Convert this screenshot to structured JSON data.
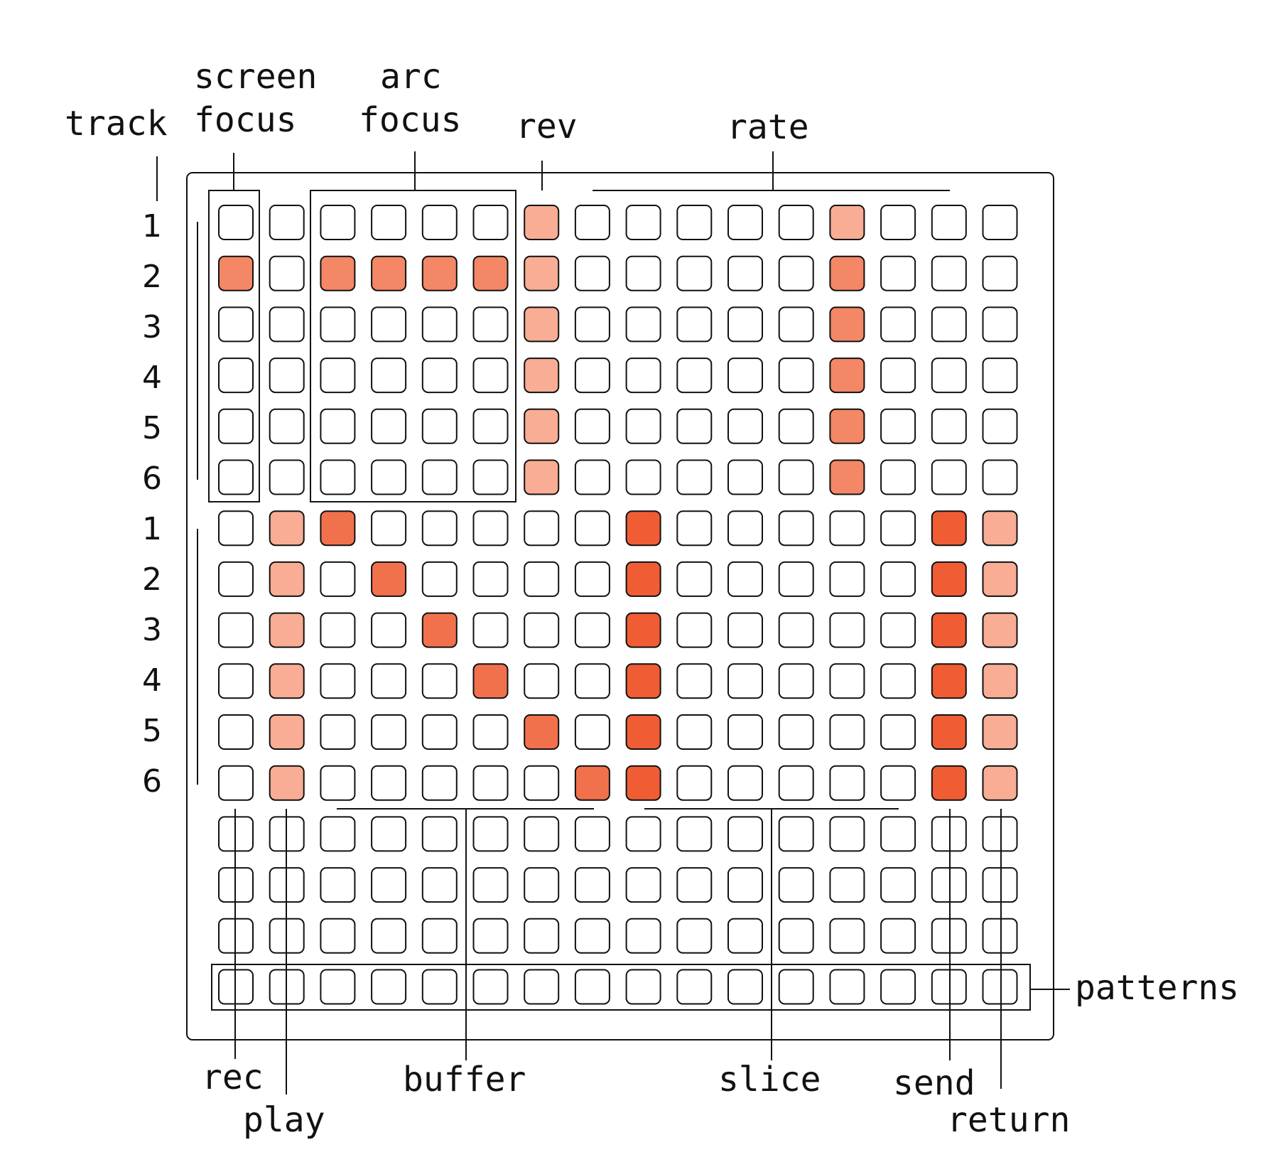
{
  "labels": {
    "track": "track",
    "screen_focus_1": "screen",
    "screen_focus_2": "focus",
    "arc_focus_1": "arc",
    "arc_focus_2": "focus",
    "rev": "rev",
    "rate": "rate",
    "rec": "rec",
    "play": "play",
    "buffer": "buffer",
    "slice": "slice",
    "send": "send",
    "return": "return",
    "patterns": "patterns"
  },
  "track_numbers": [
    "1",
    "2",
    "3",
    "4",
    "5",
    "6",
    "1",
    "2",
    "3",
    "4",
    "5",
    "6"
  ],
  "colors": {
    "empty": "#ffffff",
    "light": "#f8ad94",
    "mid": "#f48766",
    "strong": "#f2714d",
    "bright": "#f05d34",
    "outline": "#111111"
  },
  "grid": {
    "cols": 16,
    "rows": 16,
    "levels": [
      "0000001000001000",
      "2022221000002000",
      "0000001000002000",
      "0000001000002000",
      "0000001000002000",
      "0000001000002000",
      "0130000040000041",
      "0103000040000041",
      "0100300040000041",
      "0100030040000041",
      "0100003040000041",
      "0100000340000041",
      "0000000000000000",
      "0000000000000000",
      "0000000000000000",
      "0000000000000000"
    ]
  }
}
